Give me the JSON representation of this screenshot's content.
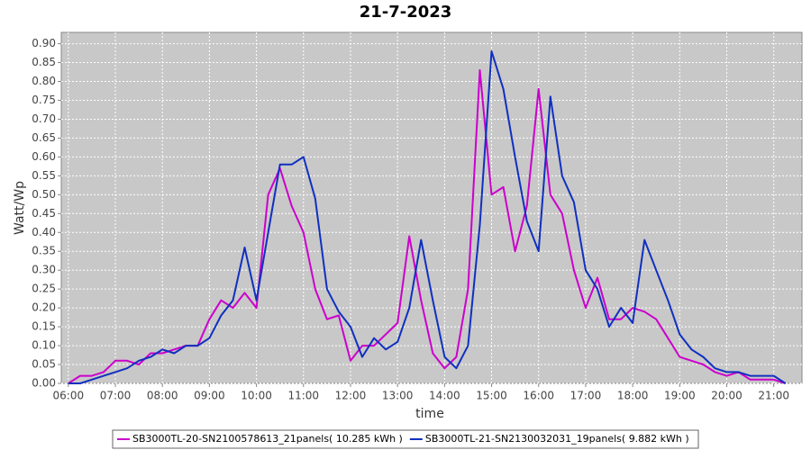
{
  "chart_data": {
    "type": "line",
    "title": "21-7-2023",
    "x_label": "time",
    "y_label": "Watt/Wp",
    "x": [
      6.0,
      6.25,
      6.5,
      6.75,
      7.0,
      7.25,
      7.5,
      7.75,
      8.0,
      8.25,
      8.5,
      8.75,
      9.0,
      9.25,
      9.5,
      9.75,
      10.0,
      10.25,
      10.5,
      10.75,
      11.0,
      11.25,
      11.5,
      11.75,
      12.0,
      12.25,
      12.5,
      12.75,
      13.0,
      13.25,
      13.5,
      13.75,
      14.0,
      14.25,
      14.5,
      14.75,
      15.0,
      15.25,
      15.5,
      15.75,
      16.0,
      16.25,
      16.5,
      16.75,
      17.0,
      17.25,
      17.5,
      17.75,
      18.0,
      18.25,
      18.5,
      18.75,
      19.0,
      19.25,
      19.5,
      19.75,
      20.0,
      20.25,
      20.5,
      20.75,
      21.0,
      21.25
    ],
    "series": [
      {
        "name": "SB3000TL-20-SN2100578613_21panels( 10.285 kWh )",
        "color": "#cc00cc",
        "values": [
          0.0,
          0.02,
          0.02,
          0.03,
          0.06,
          0.06,
          0.05,
          0.08,
          0.08,
          0.09,
          0.1,
          0.1,
          0.17,
          0.22,
          0.2,
          0.24,
          0.2,
          0.5,
          0.57,
          0.47,
          0.4,
          0.25,
          0.17,
          0.18,
          0.06,
          0.1,
          0.1,
          0.13,
          0.16,
          0.39,
          0.22,
          0.08,
          0.04,
          0.07,
          0.25,
          0.83,
          0.5,
          0.52,
          0.35,
          0.47,
          0.78,
          0.5,
          0.45,
          0.3,
          0.2,
          0.28,
          0.17,
          0.17,
          0.2,
          0.19,
          0.17,
          0.12,
          0.07,
          0.06,
          0.05,
          0.03,
          0.02,
          0.03,
          0.01,
          0.01,
          0.01,
          0.0
        ]
      },
      {
        "name": "SB3000TL-21-SN2130032031_19panels( 9.882 kWh )",
        "color": "#1030c0",
        "values": [
          0.0,
          0.0,
          0.01,
          0.02,
          0.03,
          0.04,
          0.06,
          0.07,
          0.09,
          0.08,
          0.1,
          0.1,
          0.12,
          0.18,
          0.22,
          0.36,
          0.22,
          0.4,
          0.58,
          0.58,
          0.6,
          0.49,
          0.25,
          0.19,
          0.15,
          0.07,
          0.12,
          0.09,
          0.11,
          0.2,
          0.38,
          0.22,
          0.07,
          0.04,
          0.1,
          0.42,
          0.88,
          0.78,
          0.6,
          0.43,
          0.35,
          0.76,
          0.55,
          0.48,
          0.3,
          0.25,
          0.15,
          0.2,
          0.16,
          0.38,
          0.3,
          0.22,
          0.13,
          0.09,
          0.07,
          0.04,
          0.03,
          0.03,
          0.02,
          0.02,
          0.02,
          0.0
        ]
      }
    ],
    "xlim": [
      5.85,
      21.6
    ],
    "xticks": [
      {
        "value": 6,
        "label": "06:00"
      },
      {
        "value": 7,
        "label": "07:00"
      },
      {
        "value": 8,
        "label": "08:00"
      },
      {
        "value": 9,
        "label": "09:00"
      },
      {
        "value": 10,
        "label": "10:00"
      },
      {
        "value": 11,
        "label": "11:00"
      },
      {
        "value": 12,
        "label": "12:00"
      },
      {
        "value": 13,
        "label": "13:00"
      },
      {
        "value": 14,
        "label": "14:00"
      },
      {
        "value": 15,
        "label": "15:00"
      },
      {
        "value": 16,
        "label": "16:00"
      },
      {
        "value": 17,
        "label": "17:00"
      },
      {
        "value": 18,
        "label": "18:00"
      },
      {
        "value": 19,
        "label": "19:00"
      },
      {
        "value": 20,
        "label": "20:00"
      },
      {
        "value": 21,
        "label": "21:00"
      }
    ],
    "ylim": [
      0,
      0.93
    ],
    "yticks": [
      {
        "value": 0,
        "label": "0.00"
      },
      {
        "value": 0.05,
        "label": "0.05"
      },
      {
        "value": 0.1,
        "label": "0.10"
      },
      {
        "value": 0.15,
        "label": "0.15"
      },
      {
        "value": 0.2,
        "label": "0.20"
      },
      {
        "value": 0.25,
        "label": "0.25"
      },
      {
        "value": 0.3,
        "label": "0.30"
      },
      {
        "value": 0.35,
        "label": "0.35"
      },
      {
        "value": 0.4,
        "label": "0.40"
      },
      {
        "value": 0.45,
        "label": "0.45"
      },
      {
        "value": 0.5,
        "label": "0.50"
      },
      {
        "value": 0.55,
        "label": "0.55"
      },
      {
        "value": 0.6,
        "label": "0.60"
      },
      {
        "value": 0.65,
        "label": "0.65"
      },
      {
        "value": 0.7,
        "label": "0.70"
      },
      {
        "value": 0.75,
        "label": "0.75"
      },
      {
        "value": 0.8,
        "label": "0.80"
      },
      {
        "value": 0.85,
        "label": "0.85"
      },
      {
        "value": 0.9,
        "label": "0.90"
      }
    ],
    "grid": true,
    "legend": "bottom"
  }
}
